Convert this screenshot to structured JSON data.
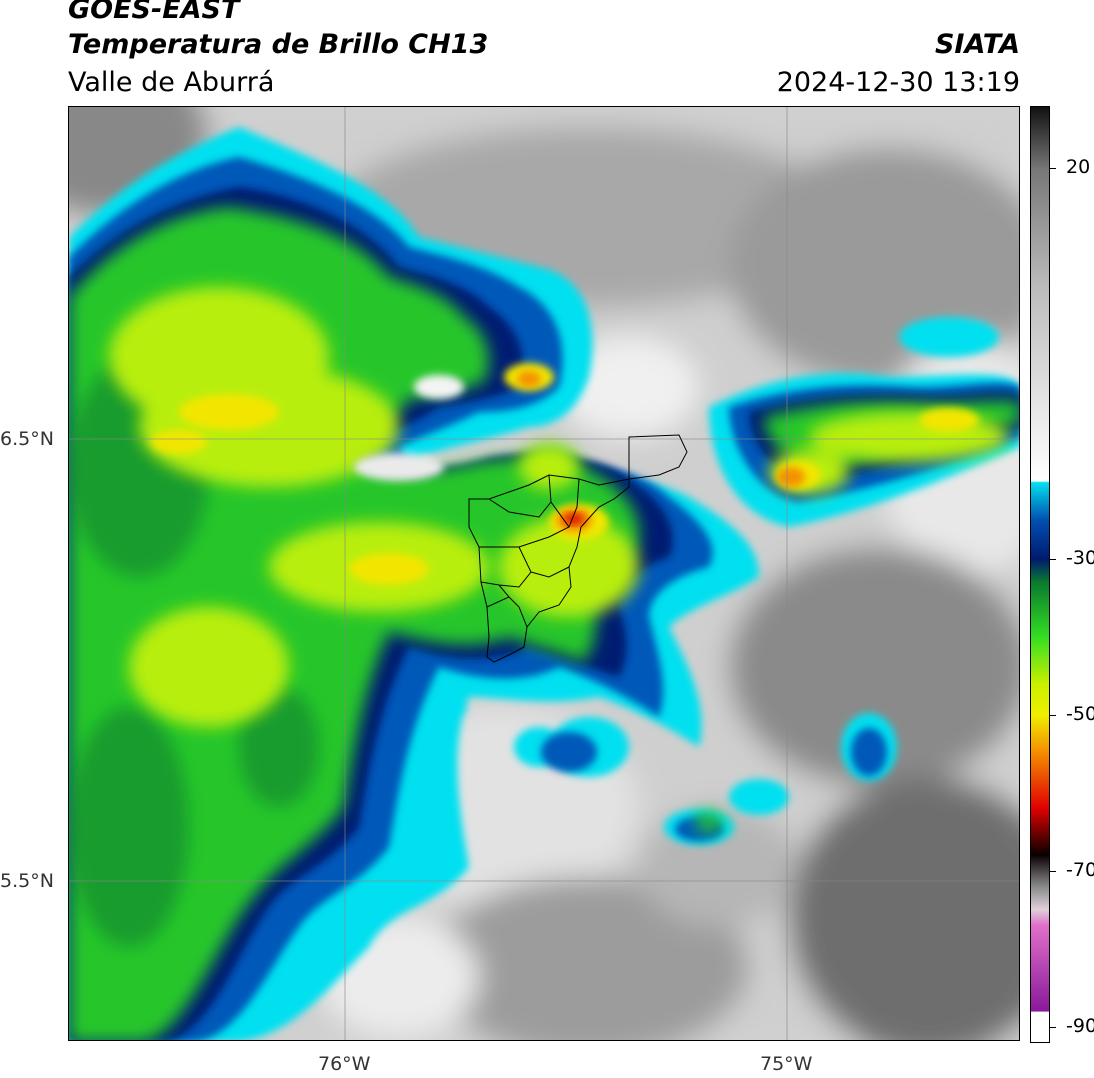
{
  "header": {
    "satellite": "GOES-EAST",
    "product": "Temperatura de Brillo CH13",
    "region": "Valle de Aburrá",
    "agency": "SIATA",
    "datetime": "2024-12-30 13:19"
  },
  "map": {
    "lat_labels": [
      "6.5°N",
      "5.5°N"
    ],
    "lon_labels": [
      "76°W",
      "75°W"
    ]
  },
  "colorbar": {
    "ticks": [
      "20",
      "-30",
      "-50",
      "-70",
      "-90"
    ],
    "tick_values": [
      20,
      -30,
      -50,
      -70,
      -90
    ],
    "range": [
      -92,
      28
    ],
    "palette": {
      "warm_gray": [
        "#111111",
        "#777777",
        "#bbbbbb",
        "#f2f2f2"
      ],
      "cyan": "#00e0f0",
      "blue": "#0050b0",
      "navy": "#001a70",
      "dark_green": "#0a7a30",
      "green": "#33dd22",
      "yellow_green": "#c8f000",
      "yellow": "#f0ee00",
      "orange": "#f48a00",
      "red": "#e00000",
      "black": "#0a0000",
      "pink": "#e070c8",
      "purple": "#8a1a9a"
    }
  }
}
